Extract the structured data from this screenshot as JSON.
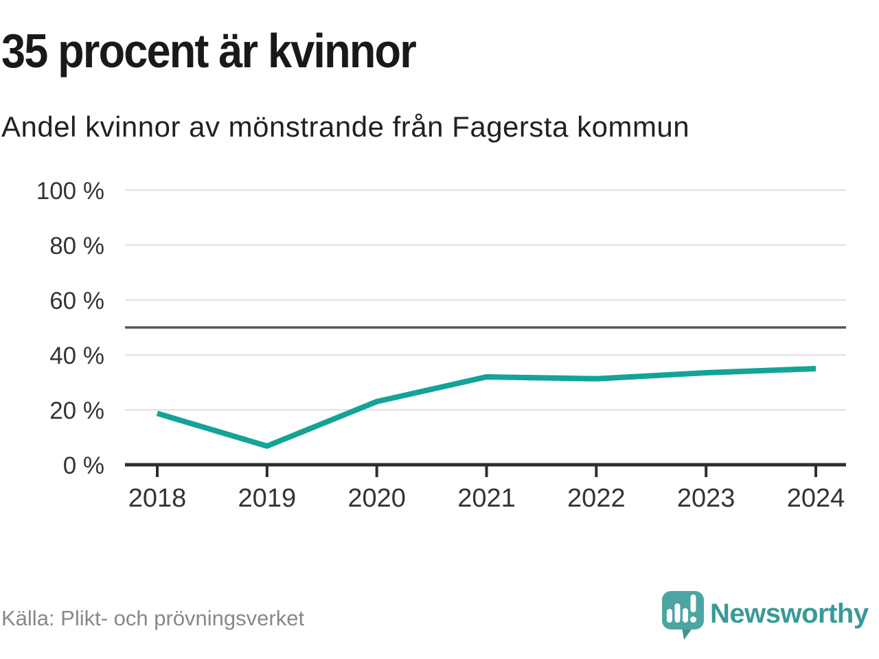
{
  "header": {
    "title": "35 procent är kvinnor",
    "subtitle": "Andel kvinnor av mönstrande från Fagersta kommun"
  },
  "chart_data": {
    "type": "line",
    "title": "35 procent är kvinnor",
    "subtitle": "Andel kvinnor av mönstrande från Fagersta kommun",
    "categories": [
      "2018",
      "2019",
      "2020",
      "2021",
      "2022",
      "2023",
      "2024"
    ],
    "series": [
      {
        "name": "Andel kvinnor av mönstrande",
        "values": [
          18.7,
          6.8,
          23.0,
          32.0,
          31.3,
          33.5,
          35.0
        ]
      }
    ],
    "unit": "%",
    "ylim": [
      0,
      100
    ],
    "yticks": [
      0,
      20,
      40,
      60,
      80,
      100
    ],
    "ytick_labels": [
      "0 %",
      "20 %",
      "40 %",
      "60 %",
      "80 %",
      "100 %"
    ],
    "reference_line": 50,
    "grid": true,
    "legend": "none",
    "colors": {
      "line": "#14a397",
      "grid": "#e0e0e0",
      "axis": "#2e2e31",
      "reference": "#55565c",
      "tick_label": "#333333"
    }
  },
  "footer": {
    "source": "Källa: Plikt- och prövningsverket",
    "brand": "Newsworthy",
    "logo": {
      "bubble_color": "#4ca5a2",
      "tail_color": "#3f9390",
      "bar_color": "#ffffff",
      "text_color": "#399a97"
    }
  }
}
